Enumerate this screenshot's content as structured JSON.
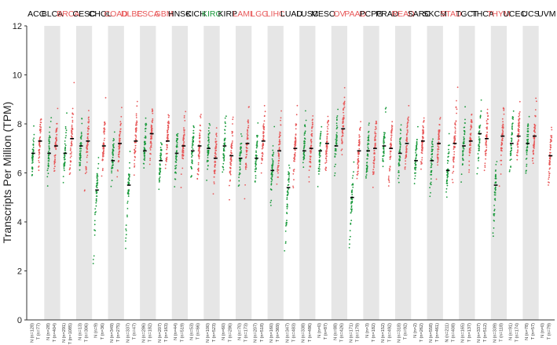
{
  "chart_data": {
    "type": "scatter",
    "ylabel": "Transcripts Per Million (TPM)",
    "ylim": [
      0,
      12
    ],
    "yticks": [
      0,
      2,
      4,
      6,
      8,
      10,
      12
    ],
    "legend": [],
    "colors": {
      "tumor_high": "#e8595a",
      "normal_high": "#1a9a3c",
      "neutral_points": "#e8595a",
      "neutral_normal": "#1a9a3c",
      "band": "#e6e6e6",
      "median": "#000000",
      "label_default": "#000000",
      "label_up": "#e8595a",
      "label_down": "#1a9a3c"
    },
    "categories": [
      {
        "name": "ACC",
        "label_color": "default",
        "tumor_n": "T (n=77)",
        "normal_n": "N (n=128)",
        "tumor_median": 7.3,
        "normal_median": 6.8
      },
      {
        "name": "BLCA",
        "label_color": "default",
        "tumor_n": "T (n=404)",
        "normal_n": "N (n=28)",
        "tumor_median": 7.1,
        "normal_median": 6.8
      },
      {
        "name": "BRCA",
        "label_color": "up",
        "tumor_n": "T (n=1085)",
        "normal_n": "N (n=291)",
        "tumor_median": 7.4,
        "normal_median": 6.8
      },
      {
        "name": "CESC",
        "label_color": "default",
        "tumor_n": "T (n=306)",
        "normal_n": "N (n=13)",
        "tumor_median": 7.3,
        "normal_median": 7.1
      },
      {
        "name": "CHOL",
        "label_color": "default",
        "tumor_n": "T (n=36)",
        "normal_n": "N (n=9)",
        "tumor_median": 7.1,
        "normal_median": 5.3
      },
      {
        "name": "COAD",
        "label_color": "up",
        "tumor_n": "T (n=275)",
        "normal_n": "N (n=349)",
        "tumor_median": 7.2,
        "normal_median": 6.5
      },
      {
        "name": "DLBC",
        "label_color": "up",
        "tumor_n": "T (n=47)",
        "normal_n": "N (n=337)",
        "tumor_median": 7.3,
        "normal_median": 5.5
      },
      {
        "name": "ESCA",
        "label_color": "up",
        "tumor_n": "T (n=182)",
        "normal_n": "N (n=286)",
        "tumor_median": 7.6,
        "normal_median": 6.9
      },
      {
        "name": "GBM",
        "label_color": "up",
        "tumor_n": "T (n=163)",
        "normal_n": "N (n=207)",
        "tumor_median": 7.3,
        "normal_median": 6.5
      },
      {
        "name": "HNSC",
        "label_color": "default",
        "tumor_n": "T (n=519)",
        "normal_n": "N (n=44)",
        "tumor_median": 7.1,
        "normal_median": 6.8
      },
      {
        "name": "KICH",
        "label_color": "default",
        "tumor_n": "T (n=66)",
        "normal_n": "N (n=53)",
        "tumor_median": 7.1,
        "normal_median": 6.9
      },
      {
        "name": "KIRC",
        "label_color": "down",
        "tumor_n": "T (n=523)",
        "normal_n": "N (n=100)",
        "tumor_median": 6.6,
        "normal_median": 7.0
      },
      {
        "name": "KIRP",
        "label_color": "default",
        "tumor_n": "T (n=286)",
        "normal_n": "N (n=60)",
        "tumor_median": 6.7,
        "normal_median": 7.1
      },
      {
        "name": "LAML",
        "label_color": "up",
        "tumor_n": "T (n=173)",
        "normal_n": "N (n=70)",
        "tumor_median": 7.2,
        "normal_median": 6.6
      },
      {
        "name": "LGG",
        "label_color": "up",
        "tumor_n": "T (n=518)",
        "normal_n": "N (n=207)",
        "tumor_median": 7.3,
        "normal_median": 6.6
      },
      {
        "name": "LIHC",
        "label_color": "up",
        "tumor_n": "T (n=369)",
        "normal_n": "N (n=160)",
        "tumor_median": 6.9,
        "normal_median": 6.1
      },
      {
        "name": "LUAD",
        "label_color": "default",
        "tumor_n": "T (n=483)",
        "normal_n": "N (n=347)",
        "tumor_median": 7.0,
        "normal_median": 5.4
      },
      {
        "name": "LUSC",
        "label_color": "default",
        "tumor_n": "T (n=486)",
        "normal_n": "N (n=338)",
        "tumor_median": 7.0,
        "normal_median": 6.9
      },
      {
        "name": "MESO",
        "label_color": "default",
        "tumor_n": "T (n=87)",
        "normal_n": "N (n=0)",
        "tumor_median": 7.2,
        "normal_median": 6.9
      },
      {
        "name": "OV",
        "label_color": "up",
        "tumor_n": "T (n=426)",
        "normal_n": "N (n=88)",
        "tumor_median": 7.8,
        "normal_median": 7.1
      },
      {
        "name": "PAAD",
        "label_color": "up",
        "tumor_n": "T (n=179)",
        "normal_n": "N (n=171)",
        "tumor_median": 6.9,
        "normal_median": 5.0
      },
      {
        "name": "PCPG",
        "label_color": "default",
        "tumor_n": "T (n=182)",
        "normal_n": "N (n=3)",
        "tumor_median": 7.0,
        "normal_median": 6.9
      },
      {
        "name": "PRAD",
        "label_color": "default",
        "tumor_n": "T (n=492)",
        "normal_n": "N (n=152)",
        "tumor_median": 7.0,
        "normal_median": 7.1
      },
      {
        "name": "READ",
        "label_color": "up",
        "tumor_n": "T (n=92)",
        "normal_n": "N (n=318)",
        "tumor_median": 7.2,
        "normal_median": 6.8
      },
      {
        "name": "SARC",
        "label_color": "default",
        "tumor_n": "T (n=262)",
        "normal_n": "N (n=2)",
        "tumor_median": 7.3,
        "normal_median": 6.5
      },
      {
        "name": "SKCM",
        "label_color": "default",
        "tumor_n": "T (n=461)",
        "normal_n": "N (n=558)",
        "tumor_median": 7.2,
        "normal_median": 6.5
      },
      {
        "name": "STAD",
        "label_color": "up",
        "tumor_n": "T (n=408)",
        "normal_n": "N (n=211)",
        "tumor_median": 7.2,
        "normal_median": 6.1
      },
      {
        "name": "TGCT",
        "label_color": "default",
        "tumor_n": "T (n=137)",
        "normal_n": "N (n=165)",
        "tumor_median": 7.3,
        "normal_median": 7.1
      },
      {
        "name": "THCA",
        "label_color": "default",
        "tumor_n": "T (n=512)",
        "normal_n": "N (n=337)",
        "tumor_median": 7.4,
        "normal_median": 7.6
      },
      {
        "name": "THYM",
        "label_color": "up",
        "tumor_n": "T (n=118)",
        "normal_n": "N (n=339)",
        "tumor_median": 7.5,
        "normal_median": 5.5
      },
      {
        "name": "UCEC",
        "label_color": "default",
        "tumor_n": "T (n=174)",
        "normal_n": "N (n=91)",
        "tumor_median": 7.5,
        "normal_median": 7.2
      },
      {
        "name": "UCS",
        "label_color": "default",
        "tumor_n": "T (n=57)",
        "normal_n": "N (n=78)",
        "tumor_median": 7.5,
        "normal_median": 7.2
      },
      {
        "name": "UVM",
        "label_color": "default",
        "tumor_n": "T (n=79)",
        "normal_n": "N (n=0)",
        "tumor_median": 6.7,
        "normal_median": null
      }
    ]
  }
}
